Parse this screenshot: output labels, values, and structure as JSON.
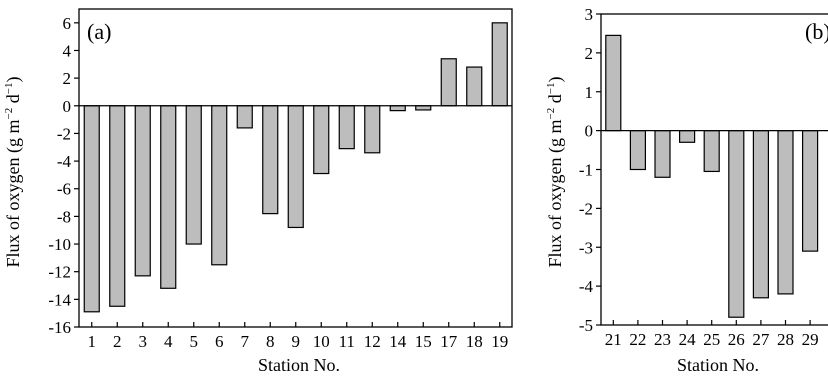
{
  "chart_data": [
    {
      "type": "bar",
      "panel_label": "(a)",
      "xlabel": "Station No.",
      "ylabel_main": "Flux of oxygen (g m",
      "ylabel_sup1": "−2",
      "ylabel_mid": " d",
      "ylabel_sup2": "−1",
      "ylabel_end": ")",
      "ylim": [
        -16,
        7
      ],
      "yticks": [
        6,
        4,
        2,
        0,
        -2,
        -4,
        -6,
        -8,
        -10,
        -12,
        -14,
        -16
      ],
      "grid": false,
      "categories": [
        "1",
        "2",
        "3",
        "4",
        "5",
        "6",
        "7",
        "8",
        "9",
        "10",
        "11",
        "12",
        "14",
        "15",
        "17",
        "18",
        "19"
      ],
      "values": [
        -14.9,
        -14.5,
        -12.3,
        -13.2,
        -10.0,
        -11.5,
        -1.6,
        -7.8,
        -8.8,
        -4.9,
        -3.1,
        -3.4,
        -0.35,
        -0.3,
        3.4,
        2.8,
        6.0
      ]
    },
    {
      "type": "bar",
      "panel_label": "(b)",
      "xlabel": "Station No.",
      "ylabel_main": "Flux of oxygen (g m",
      "ylabel_sup1": "−2",
      "ylabel_mid": " d",
      "ylabel_sup2": "−1",
      "ylabel_end": ")",
      "ylim": [
        -5,
        3
      ],
      "yticks": [
        3,
        2,
        1,
        0,
        -1,
        -2,
        -3,
        -4,
        -5
      ],
      "grid": false,
      "categories": [
        "21",
        "22",
        "23",
        "24",
        "25",
        "26",
        "27",
        "28",
        "29"
      ],
      "values": [
        2.45,
        -1.0,
        -1.2,
        -0.3,
        -1.05,
        -4.8,
        -4.3,
        -4.2,
        -3.1
      ]
    }
  ]
}
